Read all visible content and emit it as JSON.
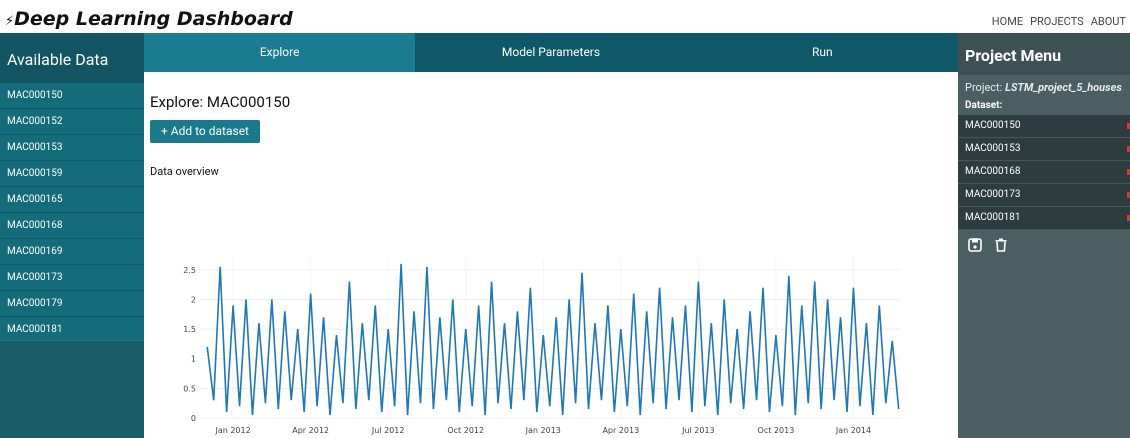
{
  "header": {
    "title": "Deep Learning Dashboard",
    "nav": [
      "HOME",
      "PROJECTS",
      "ABOUT"
    ]
  },
  "sidebar": {
    "title": "Available Data",
    "items": [
      "MAC000150",
      "MAC000152",
      "MAC000153",
      "MAC000159",
      "MAC000165",
      "MAC000168",
      "MAC000169",
      "MAC000173",
      "MAC000179",
      "MAC000181"
    ]
  },
  "tabs": [
    "Explore",
    "Model Parameters",
    "Run"
  ],
  "main": {
    "heading": "Explore: MAC000150",
    "button": "+ Add to dataset",
    "section": "Data overview"
  },
  "project_menu": {
    "title": "Project Menu",
    "project_label": "Project:",
    "project_name": "LSTM_project_5_houses",
    "dataset_label": "Dataset:",
    "dataset": [
      "MAC000150",
      "MAC000153",
      "MAC000168",
      "MAC000173",
      "MAC000181"
    ]
  },
  "chart_data": {
    "type": "line",
    "color": "#1f77b4",
    "grid": true,
    "xlim": [
      -1.28,
      25.8
    ],
    "ylim": [
      0,
      2.7
    ],
    "yticks": [
      0,
      0.5,
      1,
      1.5,
      2,
      2.5
    ],
    "xticks": [
      {
        "value": 0,
        "label": "Jan 2012"
      },
      {
        "value": 3,
        "label": "Apr 2012"
      },
      {
        "value": 6,
        "label": "Jul 2012"
      },
      {
        "value": 9,
        "label": "Oct 2012"
      },
      {
        "value": 12,
        "label": "Jan 2013"
      },
      {
        "value": 15,
        "label": "Apr 2013"
      },
      {
        "value": 18,
        "label": "Jul 2013"
      },
      {
        "value": 21,
        "label": "Oct 2013"
      },
      {
        "value": 24,
        "label": "Jan 2014"
      }
    ],
    "x": [
      -1,
      -0.75,
      -0.5,
      -0.25,
      0,
      0.25,
      0.5,
      0.75,
      1,
      1.25,
      1.5,
      1.75,
      2,
      2.25,
      2.5,
      2.75,
      3,
      3.25,
      3.5,
      3.75,
      4,
      4.25,
      4.5,
      4.75,
      5,
      5.25,
      5.5,
      5.75,
      6,
      6.25,
      6.5,
      6.75,
      7,
      7.25,
      7.5,
      7.75,
      8,
      8.25,
      8.5,
      8.75,
      9,
      9.25,
      9.5,
      9.75,
      10,
      10.25,
      10.5,
      10.75,
      11,
      11.25,
      11.5,
      11.75,
      12,
      12.25,
      12.5,
      12.75,
      13,
      13.25,
      13.5,
      13.75,
      14,
      14.25,
      14.5,
      14.75,
      15,
      15.25,
      15.5,
      15.75,
      16,
      16.25,
      16.5,
      16.75,
      17,
      17.25,
      17.5,
      17.75,
      18,
      18.25,
      18.5,
      18.75,
      19,
      19.25,
      19.5,
      19.75,
      20,
      20.25,
      20.5,
      20.75,
      21,
      21.25,
      21.5,
      21.75,
      22,
      22.25,
      22.5,
      22.75,
      23,
      23.25,
      23.5,
      23.75,
      24,
      24.25,
      24.5,
      24.75,
      25,
      25.25,
      25.5,
      25.75
    ],
    "series": [
      {
        "name": "MAC000150",
        "values": [
          1.2,
          0.3,
          2.55,
          0.1,
          1.9,
          0.2,
          2.0,
          0.05,
          1.6,
          0.25,
          2.0,
          0.15,
          1.8,
          0.3,
          1.5,
          0.1,
          2.1,
          0.2,
          1.7,
          0.05,
          1.4,
          0.25,
          2.3,
          0.15,
          1.6,
          0.3,
          1.9,
          0.1,
          1.5,
          0.2,
          2.6,
          0.05,
          1.8,
          0.25,
          2.55,
          0.15,
          1.7,
          0.3,
          2.0,
          0.1,
          1.5,
          0.2,
          1.9,
          0.05,
          2.3,
          0.25,
          1.6,
          0.15,
          1.8,
          0.3,
          2.2,
          0.1,
          1.4,
          0.2,
          1.7,
          0.05,
          2.0,
          0.25,
          2.45,
          0.15,
          1.6,
          0.3,
          1.9,
          0.1,
          1.5,
          0.2,
          2.1,
          0.05,
          1.8,
          0.25,
          2.2,
          0.15,
          1.7,
          0.3,
          1.9,
          0.1,
          2.3,
          0.2,
          1.6,
          0.05,
          2.0,
          0.25,
          1.5,
          0.15,
          1.8,
          0.3,
          2.2,
          0.1,
          1.4,
          0.2,
          2.4,
          0.05,
          1.9,
          0.25,
          2.3,
          0.15,
          2.0,
          0.3,
          1.7,
          0.1,
          2.2,
          0.2,
          1.6,
          0.05,
          1.9,
          0.25,
          1.3,
          0.15
        ]
      }
    ]
  }
}
